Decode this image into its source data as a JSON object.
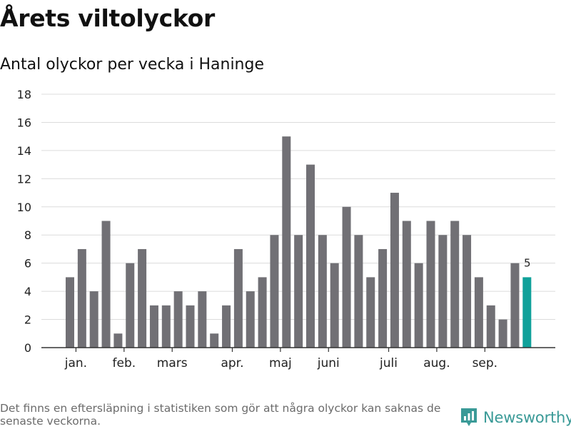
{
  "title": "Årets viltolyckor",
  "subtitle": "Antal olyckor per vecka i Haninge",
  "footer": {
    "note": "Det finns en eftersläpning i statistiken som gör att några olyckor kan saknas de senaste veckorna.",
    "brand": "Newsworthy",
    "brand_icon": "bar-chart-speech-bubble-icon"
  },
  "colors": {
    "bar": "#717075",
    "highlight": "#10a19a",
    "grid": "#dcdcdc",
    "axis": "#333333",
    "brand": "#3a9a97"
  },
  "chart_data": {
    "type": "bar",
    "title": "Årets viltolyckor",
    "subtitle": "Antal olyckor per vecka i Haninge",
    "xlabel": "",
    "ylabel": "",
    "ylim": [
      0,
      18
    ],
    "yticks": [
      0,
      2,
      4,
      6,
      8,
      10,
      12,
      14,
      16,
      18
    ],
    "grid": true,
    "values": [
      5,
      7,
      4,
      9,
      1,
      6,
      7,
      3,
      3,
      4,
      3,
      4,
      1,
      3,
      7,
      4,
      5,
      8,
      15,
      8,
      13,
      8,
      6,
      10,
      8,
      5,
      7,
      11,
      9,
      6,
      9,
      8,
      9,
      8,
      5,
      3,
      2,
      6,
      5
    ],
    "highlight_index": 38,
    "highlight_label": "5",
    "month_labels": [
      {
        "label": "jan.",
        "bar": 0.5
      },
      {
        "label": "feb.",
        "bar": 4.5
      },
      {
        "label": "mars",
        "bar": 8.5
      },
      {
        "label": "apr.",
        "bar": 13.5
      },
      {
        "label": "maj",
        "bar": 17.5
      },
      {
        "label": "juni",
        "bar": 21.5
      },
      {
        "label": "juli",
        "bar": 26.5
      },
      {
        "label": "aug.",
        "bar": 30.5
      },
      {
        "label": "sep.",
        "bar": 34.5
      }
    ]
  }
}
